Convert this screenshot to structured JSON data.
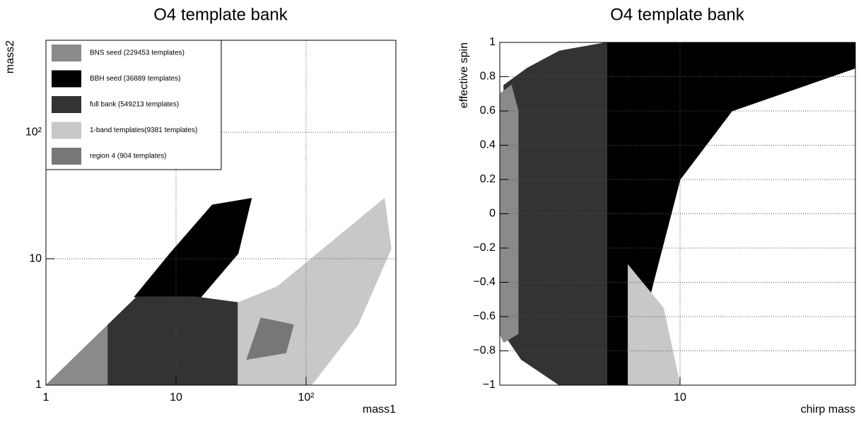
{
  "chart_data": [
    {
      "type": "scatter",
      "title": "O4 template bank",
      "x_label": "mass1",
      "y_label": "mass2",
      "xlog": true,
      "ylog": true,
      "grid": true,
      "legend": "top-left",
      "xlim": [
        1,
        490
      ],
      "ylim": [
        1,
        535
      ],
      "xticks": [
        1,
        10,
        {
          "value": 100,
          "label": "10²"
        }
      ],
      "yticks": [
        1,
        10,
        {
          "value": 100,
          "label": "10²"
        }
      ],
      "series": [
        {
          "name": "BNS seed (229453 templates)",
          "color": "#8a8a8a",
          "x": [
            1,
            3,
            3
          ],
          "values": [
            1,
            1,
            3
          ]
        },
        {
          "name": "BBH seed (36889 templates)",
          "color": "#000000",
          "x": [
            4.8,
            15.6,
            30,
            38,
            19,
            9
          ],
          "values": [
            5,
            5,
            11,
            30,
            26.6,
            11
          ]
        },
        {
          "name": "full bank (549213 templates)",
          "color": "#333333",
          "x": [
            3,
            30,
            30,
            14,
            5,
            3
          ],
          "values": [
            1,
            1,
            4.5,
            5,
            5,
            3
          ]
        },
        {
          "name": "1-band templates(9381 templates)",
          "color": "#c8c8c8",
          "x": [
            30,
            110,
            250,
            450,
            400,
            60,
            30
          ],
          "values": [
            1,
            1,
            3,
            12,
            30,
            6,
            4.5
          ]
        },
        {
          "name": "region 4 (904 templates)",
          "color": "#777777",
          "x": [
            35,
            70,
            80,
            45
          ],
          "values": [
            1.6,
            1.8,
            3,
            3.4
          ]
        }
      ]
    },
    {
      "type": "scatter",
      "title": "O4 template bank",
      "x_label": "chirp mass",
      "y_label": "effective spin",
      "xlog": true,
      "ylog": false,
      "grid": true,
      "xlim": [
        0.9,
        104
      ],
      "ylim": [
        -1,
        1
      ],
      "xticks": [
        10
      ],
      "yticks": [
        {
          "value": -1,
          "label": "−1"
        },
        {
          "value": -0.8,
          "label": "−0.8"
        },
        {
          "value": -0.6,
          "label": "−0.6"
        },
        {
          "value": -0.4,
          "label": "−0.4"
        },
        {
          "value": -0.2,
          "label": "−0.2"
        },
        0,
        0.2,
        0.4,
        0.6,
        0.8,
        1
      ],
      "series": [
        {
          "color": "#333333",
          "x": [
            0.95,
            1.3,
            2,
            3.8,
            3.8,
            2,
            1.2,
            0.95
          ],
          "values": [
            0.75,
            0.85,
            0.95,
            1,
            -1,
            -1,
            -0.85,
            -0.7
          ]
        },
        {
          "color": "#000000",
          "x": [
            3.8,
            104,
            104,
            20,
            10,
            7,
            5,
            3.8
          ],
          "values": [
            1,
            1,
            0.85,
            0.6,
            0.2,
            -0.4,
            -1,
            -1
          ]
        },
        {
          "color": "#8a8a8a",
          "x": [
            0.9,
            1.05,
            1.15,
            1.15,
            0.95,
            0.9
          ],
          "values": [
            0.7,
            0.75,
            0.6,
            -0.7,
            -0.75,
            -0.7
          ]
        },
        {
          "color": "#c8c8c8",
          "x": [
            5,
            8,
            10,
            5
          ],
          "values": [
            -0.3,
            -0.55,
            -1,
            -1
          ]
        }
      ]
    }
  ]
}
